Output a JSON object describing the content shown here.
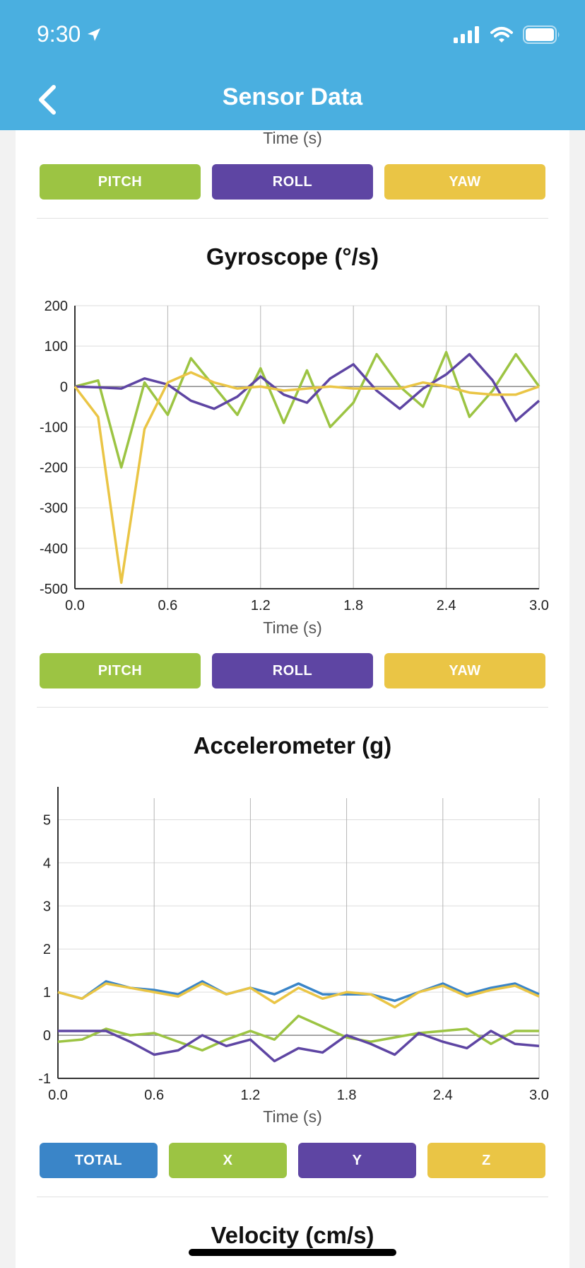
{
  "status_bar": {
    "time": "9:30"
  },
  "header": {
    "title": "Sensor Data"
  },
  "prev_chart": {
    "xlabel": "Time (s)",
    "buttons": [
      "PITCH",
      "ROLL",
      "YAW"
    ]
  },
  "colors": {
    "green": "#9cc443",
    "purple": "#5e45a3",
    "yellow": "#eac545",
    "blue": "#3a85c8",
    "header": "#4aafe0"
  },
  "gyro": {
    "title": "Gyroscope (°/s)",
    "buttons": [
      "PITCH",
      "ROLL",
      "YAW"
    ]
  },
  "accel": {
    "title": "Accelerometer (g)",
    "buttons": [
      "TOTAL",
      "X",
      "Y",
      "Z"
    ]
  },
  "velocity": {
    "title": "Velocity (cm/s)"
  },
  "chart_data": [
    {
      "type": "line",
      "title": "Gyroscope (°/s)",
      "xlabel": "Time (s)",
      "ylabel": "",
      "xlim": [
        0,
        3.0
      ],
      "ylim": [
        -500,
        200
      ],
      "xticks": [
        "0.0",
        "0.6",
        "1.2",
        "1.8",
        "2.4",
        "3.0"
      ],
      "yticks": [
        "200",
        "100",
        "0",
        "-100",
        "-200",
        "-300",
        "-400",
        "-500"
      ],
      "x": [
        0.0,
        0.15,
        0.3,
        0.45,
        0.6,
        0.75,
        0.9,
        1.05,
        1.2,
        1.35,
        1.5,
        1.65,
        1.8,
        1.95,
        2.1,
        2.25,
        2.4,
        2.55,
        2.7,
        2.85,
        3.0
      ],
      "series": [
        {
          "name": "PITCH",
          "color": "#9cc443",
          "values": [
            0,
            15,
            -200,
            10,
            -70,
            70,
            0,
            -70,
            45,
            -90,
            40,
            -100,
            -40,
            80,
            0,
            -50,
            85,
            -75,
            -10,
            80,
            0
          ]
        },
        {
          "name": "ROLL",
          "color": "#5e45a3",
          "values": [
            0,
            -2,
            -5,
            20,
            5,
            -35,
            -55,
            -25,
            25,
            -20,
            -40,
            20,
            55,
            -10,
            -55,
            -5,
            30,
            80,
            15,
            -85,
            -35
          ]
        },
        {
          "name": "YAW",
          "color": "#eac545",
          "values": [
            0,
            -75,
            -485,
            -105,
            10,
            35,
            10,
            -5,
            0,
            -10,
            -5,
            0,
            -5,
            -5,
            -5,
            10,
            0,
            -15,
            -20,
            -20,
            0
          ]
        }
      ]
    },
    {
      "type": "line",
      "title": "Accelerometer (g)",
      "xlabel": "Time (s)",
      "ylabel": "",
      "xlim": [
        0,
        3.0
      ],
      "ylim": [
        -1,
        5.5
      ],
      "xticks": [
        "0.0",
        "0.6",
        "1.2",
        "1.8",
        "2.4",
        "3.0"
      ],
      "yticks": [
        "5",
        "4",
        "3",
        "2",
        "1",
        "0",
        "-1"
      ],
      "x": [
        0.0,
        0.15,
        0.3,
        0.45,
        0.6,
        0.75,
        0.9,
        1.05,
        1.2,
        1.35,
        1.5,
        1.65,
        1.8,
        1.95,
        2.1,
        2.25,
        2.4,
        2.55,
        2.7,
        2.85,
        3.0
      ],
      "series": [
        {
          "name": "TOTAL",
          "color": "#3a85c8",
          "values": [
            1.0,
            0.85,
            1.25,
            1.1,
            1.05,
            0.95,
            1.25,
            0.95,
            1.1,
            0.95,
            1.2,
            0.95,
            0.95,
            0.95,
            0.8,
            1.0,
            1.2,
            0.95,
            1.1,
            1.2,
            0.95
          ]
        },
        {
          "name": "X",
          "color": "#9cc443",
          "values": [
            -0.15,
            -0.1,
            0.15,
            0.0,
            0.05,
            -0.15,
            -0.35,
            -0.1,
            0.1,
            -0.1,
            0.45,
            0.2,
            -0.05,
            -0.15,
            -0.05,
            0.05,
            0.1,
            0.15,
            -0.2,
            0.1,
            0.1
          ]
        },
        {
          "name": "Y",
          "color": "#5e45a3",
          "values": [
            0.1,
            0.1,
            0.1,
            -0.15,
            -0.45,
            -0.35,
            0.0,
            -0.25,
            -0.1,
            -0.6,
            -0.3,
            -0.4,
            0.0,
            -0.2,
            -0.45,
            0.05,
            -0.15,
            -0.3,
            0.1,
            -0.2,
            -0.25
          ]
        },
        {
          "name": "Z",
          "color": "#eac545",
          "values": [
            1.0,
            0.85,
            1.2,
            1.1,
            1.0,
            0.9,
            1.2,
            0.95,
            1.1,
            0.75,
            1.1,
            0.85,
            1.0,
            0.95,
            0.65,
            1.0,
            1.15,
            0.9,
            1.05,
            1.15,
            0.9
          ]
        }
      ]
    }
  ]
}
